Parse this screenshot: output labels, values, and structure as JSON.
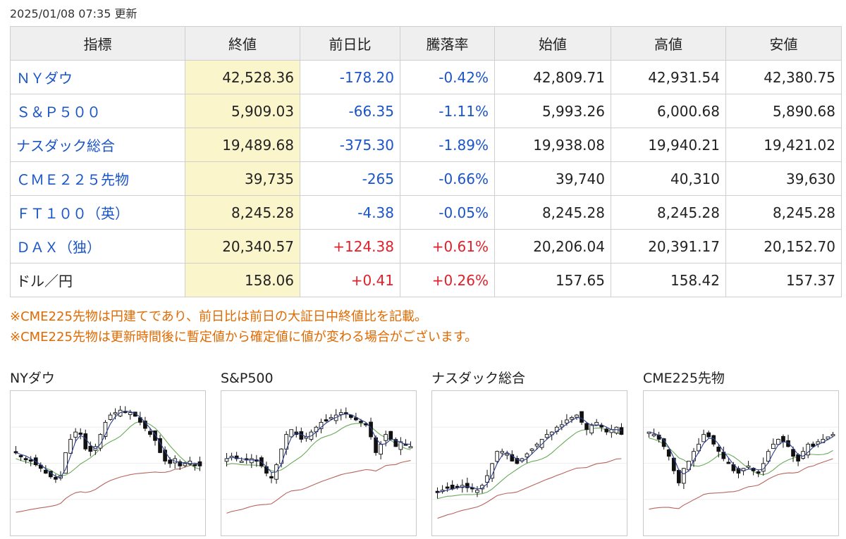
{
  "updated": "2025/01/08 07:35 更新",
  "headers": [
    "指標",
    "終値",
    "前日比",
    "騰落率",
    "始値",
    "高値",
    "安値"
  ],
  "rows": [
    {
      "name": "ＮＹダウ",
      "link": true,
      "close": "42,528.36",
      "change": "-178.20",
      "pct": "-0.42%",
      "open": "42,809.71",
      "high": "42,931.54",
      "low": "42,380.75",
      "dir": "neg"
    },
    {
      "name": "Ｓ＆Ｐ５００",
      "link": true,
      "close": "5,909.03",
      "change": "-66.35",
      "pct": "-1.11%",
      "open": "5,993.26",
      "high": "6,000.68",
      "low": "5,890.68",
      "dir": "neg"
    },
    {
      "name": "ナスダック総合",
      "link": true,
      "close": "19,489.68",
      "change": "-375.30",
      "pct": "-1.89%",
      "open": "19,938.08",
      "high": "19,940.21",
      "low": "19,421.02",
      "dir": "neg"
    },
    {
      "name": "ＣＭＥ２２５先物",
      "link": true,
      "close": "39,735",
      "change": "-265",
      "pct": "-0.66%",
      "open": "39,740",
      "high": "40,310",
      "low": "39,630",
      "dir": "neg"
    },
    {
      "name": "ＦＴ１００（英）",
      "link": true,
      "close": "8,245.28",
      "change": "-4.38",
      "pct": "-0.05%",
      "open": "8,245.28",
      "high": "8,245.28",
      "low": "8,245.28",
      "dir": "neg"
    },
    {
      "name": "ＤＡＸ（独）",
      "link": true,
      "close": "20,340.57",
      "change": "+124.38",
      "pct": "+0.61%",
      "open": "20,206.04",
      "high": "20,391.17",
      "low": "20,152.70",
      "dir": "pos"
    },
    {
      "name": "ドル／円",
      "link": false,
      "close": "158.06",
      "change": "+0.41",
      "pct": "+0.26%",
      "open": "157.65",
      "high": "158.42",
      "low": "157.37",
      "dir": "pos"
    }
  ],
  "notes": [
    "※CME225先物は円建てであり、前日比は前日の大証日中終値比を記載。",
    "※CME225先物は更新時間後に暫定値から確定値に値が変わる場合がございます。"
  ],
  "charts": [
    {
      "title": "NYダウ",
      "seed": 11,
      "closes": [
        0.55,
        0.52,
        0.5,
        0.48,
        0.45,
        0.42,
        0.38,
        0.35,
        0.33,
        0.36,
        0.55,
        0.66,
        0.72,
        0.7,
        0.58,
        0.56,
        0.6,
        0.7,
        0.8,
        0.86,
        0.88,
        0.9,
        0.89,
        0.88,
        0.85,
        0.8,
        0.75,
        0.7,
        0.65,
        0.55,
        0.48,
        0.46,
        0.5,
        0.44,
        0.46,
        0.48,
        0.45,
        0.44
      ]
    },
    {
      "title": "S&P500",
      "seed": 23,
      "closes": [
        0.5,
        0.52,
        0.5,
        0.48,
        0.49,
        0.5,
        0.48,
        0.44,
        0.38,
        0.34,
        0.45,
        0.58,
        0.7,
        0.74,
        0.7,
        0.66,
        0.68,
        0.72,
        0.76,
        0.8,
        0.82,
        0.84,
        0.86,
        0.88,
        0.87,
        0.84,
        0.82,
        0.8,
        0.78,
        0.68,
        0.55,
        0.62,
        0.7,
        0.66,
        0.6,
        0.64,
        0.62,
        0.6
      ]
    },
    {
      "title": "ナスダック総合",
      "seed": 37,
      "closes": [
        0.22,
        0.24,
        0.26,
        0.25,
        0.27,
        0.28,
        0.26,
        0.25,
        0.24,
        0.28,
        0.36,
        0.46,
        0.56,
        0.56,
        0.54,
        0.48,
        0.46,
        0.5,
        0.54,
        0.58,
        0.62,
        0.66,
        0.7,
        0.72,
        0.76,
        0.78,
        0.82,
        0.84,
        0.86,
        0.8,
        0.74,
        0.78,
        0.8,
        0.76,
        0.72,
        0.74,
        0.76,
        0.7
      ]
    },
    {
      "title": "CME225先物",
      "seed": 53,
      "closes": [
        0.72,
        0.7,
        0.66,
        0.6,
        0.52,
        0.4,
        0.3,
        0.42,
        0.48,
        0.56,
        0.62,
        0.7,
        0.68,
        0.62,
        0.56,
        0.5,
        0.46,
        0.4,
        0.38,
        0.42,
        0.44,
        0.4,
        0.38,
        0.46,
        0.56,
        0.62,
        0.66,
        0.64,
        0.6,
        0.52,
        0.48,
        0.56,
        0.62,
        0.6,
        0.64,
        0.66,
        0.68,
        0.7
      ]
    }
  ],
  "colors": {
    "link": "#1a55c8",
    "negative": "#1a55c8",
    "positive": "#e0202a",
    "close_highlight": "#fbf5cc",
    "note": "#e06a00",
    "ma_short": "#2c3e8c",
    "ma_mid": "#6aaa5a",
    "ma_long": "#b8645c"
  }
}
